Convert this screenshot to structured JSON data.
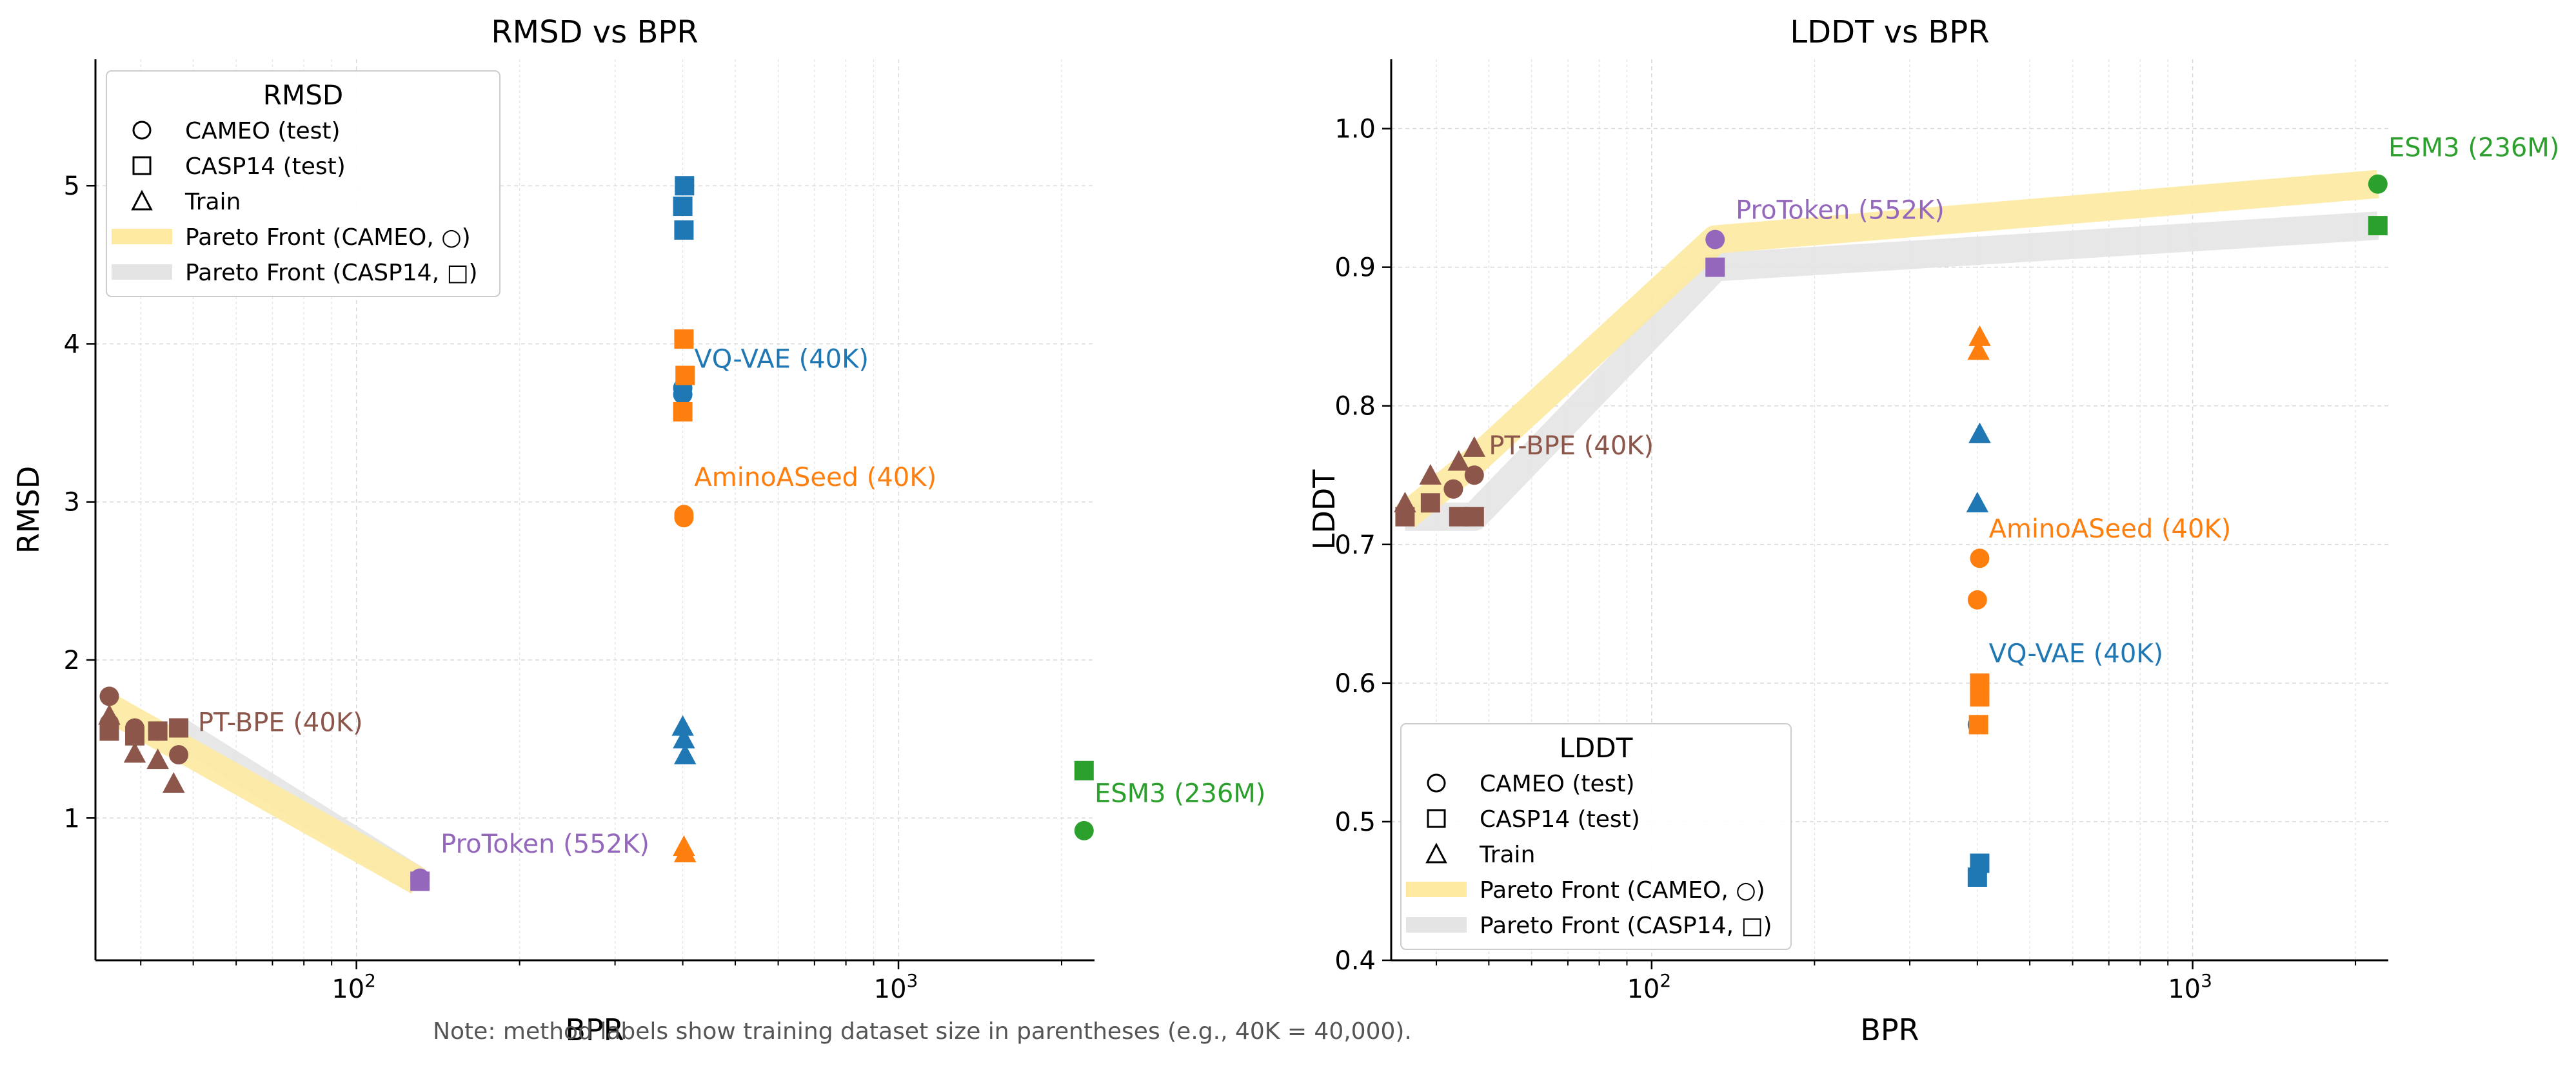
{
  "note": "Note: method labels show training dataset size in parentheses (e.g., 40K = 40,000).",
  "colors": {
    "VQ-VAE": "#1f77b4",
    "AminoASeed": "#ff7f0e",
    "ESM3": "#2ca02c",
    "PT-BPE": "#8c564b",
    "ProToken": "#9467bd",
    "pareto_cameo": "#fdeaa0",
    "pareto_casp14": "#e4e4e4",
    "note": "#555555"
  },
  "chart_data": [
    {
      "type": "scatter",
      "title": "RMSD vs BPR",
      "xlabel": "BPR",
      "ylabel": "RMSD",
      "xscale": "log",
      "xlim": [
        33,
        2300
      ],
      "ylim": [
        0.1,
        5.8
      ],
      "xticks": [
        {
          "value": 100,
          "base": "10",
          "exp": "2"
        },
        {
          "value": 1000,
          "base": "10",
          "exp": "3"
        }
      ],
      "yticks": [
        1,
        2,
        3,
        4,
        5
      ],
      "legend": {
        "title": "RMSD",
        "position": "upper-left",
        "entries": [
          {
            "marker": "circle",
            "label": "CAMEO (test)"
          },
          {
            "marker": "square",
            "label": "CASP14 (test)"
          },
          {
            "marker": "triangle",
            "label": "Train"
          },
          {
            "marker": "band-cameo",
            "label": "Pareto Front (CAMEO, ○)"
          },
          {
            "marker": "band-casp14",
            "label": "Pareto Front (CASP14, □)"
          }
        ]
      },
      "pareto": {
        "cameo": {
          "x": [
            35,
            130
          ],
          "y": [
            1.7,
            0.6
          ]
        },
        "casp14": {
          "x": [
            47,
            130
          ],
          "y": [
            1.55,
            0.6
          ]
        }
      },
      "series": [
        {
          "name": "VQ-VAE",
          "color": "#1f77b4",
          "label": "VQ-VAE (40K)",
          "label_at": [
            420,
            3.85
          ],
          "points": [
            {
              "x": 400,
              "y": 3.68,
              "m": "circle"
            },
            {
              "x": 400,
              "y": 3.72,
              "m": "circle"
            },
            {
              "x": 403,
              "y": 5.0,
              "m": "square"
            },
            {
              "x": 400,
              "y": 4.87,
              "m": "square"
            },
            {
              "x": 402,
              "y": 4.72,
              "m": "square"
            },
            {
              "x": 400,
              "y": 1.58,
              "m": "triangle"
            },
            {
              "x": 402,
              "y": 1.5,
              "m": "triangle"
            },
            {
              "x": 404,
              "y": 1.4,
              "m": "triangle"
            }
          ]
        },
        {
          "name": "AminoASeed",
          "color": "#ff7f0e",
          "label": "AminoASeed (40K)",
          "label_at": [
            420,
            3.1
          ],
          "points": [
            {
              "x": 402,
              "y": 2.92,
              "m": "circle"
            },
            {
              "x": 402,
              "y": 2.9,
              "m": "circle"
            },
            {
              "x": 402,
              "y": 4.03,
              "m": "square"
            },
            {
              "x": 404,
              "y": 3.8,
              "m": "square"
            },
            {
              "x": 400,
              "y": 3.57,
              "m": "square"
            },
            {
              "x": 402,
              "y": 0.82,
              "m": "triangle"
            },
            {
              "x": 404,
              "y": 0.78,
              "m": "triangle"
            }
          ]
        },
        {
          "name": "ESM3",
          "color": "#2ca02c",
          "label": "ESM3 (236M)",
          "label_at": [
            2300,
            1.1
          ],
          "points": [
            {
              "x": 2200,
              "y": 0.92,
              "m": "circle"
            },
            {
              "x": 2200,
              "y": 1.3,
              "m": "square"
            }
          ]
        },
        {
          "name": "PT-BPE",
          "color": "#8c564b",
          "label": "PT-BPE (40K)",
          "label_at": [
            51,
            1.55
          ],
          "points": [
            {
              "x": 35,
              "y": 1.77,
              "m": "circle"
            },
            {
              "x": 35,
              "y": 1.6,
              "m": "circle"
            },
            {
              "x": 39,
              "y": 1.57,
              "m": "circle"
            },
            {
              "x": 43,
              "y": 1.55,
              "m": "circle"
            },
            {
              "x": 47,
              "y": 1.4,
              "m": "circle"
            },
            {
              "x": 35,
              "y": 1.55,
              "m": "square"
            },
            {
              "x": 39,
              "y": 1.52,
              "m": "square"
            },
            {
              "x": 43,
              "y": 1.55,
              "m": "square"
            },
            {
              "x": 47,
              "y": 1.57,
              "m": "square"
            },
            {
              "x": 35,
              "y": 1.65,
              "m": "triangle"
            },
            {
              "x": 39,
              "y": 1.41,
              "m": "triangle"
            },
            {
              "x": 43,
              "y": 1.37,
              "m": "triangle"
            },
            {
              "x": 46,
              "y": 1.22,
              "m": "triangle"
            }
          ]
        },
        {
          "name": "ProToken",
          "color": "#9467bd",
          "label": "ProToken (552K)",
          "label_at": [
            143,
            0.78
          ],
          "points": [
            {
              "x": 131,
              "y": 0.62,
              "m": "circle"
            },
            {
              "x": 131,
              "y": 0.6,
              "m": "square"
            }
          ]
        }
      ]
    },
    {
      "type": "scatter",
      "title": "LDDT vs BPR",
      "xlabel": "BPR",
      "ylabel": "LDDT",
      "xscale": "log",
      "xlim": [
        33,
        2300
      ],
      "ylim": [
        0.4,
        1.05
      ],
      "xticks": [
        {
          "value": 100,
          "base": "10",
          "exp": "2"
        },
        {
          "value": 1000,
          "base": "10",
          "exp": "3"
        }
      ],
      "yticks": [
        0.4,
        0.5,
        0.6,
        0.7,
        0.8,
        0.9,
        1.0
      ],
      "legend": {
        "title": "LDDT",
        "position": "lower-left",
        "entries": [
          {
            "marker": "circle",
            "label": "CAMEO (test)"
          },
          {
            "marker": "square",
            "label": "CASP14 (test)"
          },
          {
            "marker": "triangle",
            "label": "Train"
          },
          {
            "marker": "band-cameo",
            "label": "Pareto Front (CAMEO, ○)"
          },
          {
            "marker": "band-casp14",
            "label": "Pareto Front (CASP14, □)"
          }
        ]
      },
      "pareto": {
        "cameo": {
          "x": [
            35,
            47,
            131,
            2200
          ],
          "y": [
            0.72,
            0.76,
            0.92,
            0.96
          ]
        },
        "casp14": {
          "x": [
            35,
            47,
            131,
            2200
          ],
          "y": [
            0.72,
            0.72,
            0.9,
            0.93
          ]
        }
      },
      "series": [
        {
          "name": "VQ-VAE",
          "color": "#1f77b4",
          "label": "VQ-VAE (40K)",
          "label_at": [
            420,
            0.615
          ],
          "points": [
            {
              "x": 400,
              "y": 0.57,
              "m": "circle"
            },
            {
              "x": 404,
              "y": 0.47,
              "m": "square"
            },
            {
              "x": 400,
              "y": 0.46,
              "m": "square"
            },
            {
              "x": 404,
              "y": 0.78,
              "m": "triangle"
            },
            {
              "x": 400,
              "y": 0.73,
              "m": "triangle"
            }
          ]
        },
        {
          "name": "AminoASeed",
          "color": "#ff7f0e",
          "label": "AminoASeed (40K)",
          "label_at": [
            420,
            0.705
          ],
          "points": [
            {
              "x": 404,
              "y": 0.69,
              "m": "circle"
            },
            {
              "x": 400,
              "y": 0.66,
              "m": "circle"
            },
            {
              "x": 404,
              "y": 0.6,
              "m": "square"
            },
            {
              "x": 404,
              "y": 0.59,
              "m": "square"
            },
            {
              "x": 402,
              "y": 0.57,
              "m": "square"
            },
            {
              "x": 404,
              "y": 0.85,
              "m": "triangle"
            },
            {
              "x": 402,
              "y": 0.84,
              "m": "triangle"
            }
          ]
        },
        {
          "name": "ESM3",
          "color": "#2ca02c",
          "label": "ESM3 (236M)",
          "label_at": [
            2300,
            0.98
          ],
          "points": [
            {
              "x": 2200,
              "y": 0.96,
              "m": "circle"
            },
            {
              "x": 2200,
              "y": 0.93,
              "m": "square"
            }
          ]
        },
        {
          "name": "PT-BPE",
          "color": "#8c564b",
          "label": "PT-BPE (40K)",
          "label_at": [
            50,
            0.765
          ],
          "points": [
            {
              "x": 43,
              "y": 0.74,
              "m": "circle"
            },
            {
              "x": 47,
              "y": 0.75,
              "m": "circle"
            },
            {
              "x": 35,
              "y": 0.72,
              "m": "square"
            },
            {
              "x": 39,
              "y": 0.73,
              "m": "square"
            },
            {
              "x": 44,
              "y": 0.72,
              "m": "square"
            },
            {
              "x": 47,
              "y": 0.72,
              "m": "square"
            },
            {
              "x": 35,
              "y": 0.73,
              "m": "triangle"
            },
            {
              "x": 39,
              "y": 0.75,
              "m": "triangle"
            },
            {
              "x": 44,
              "y": 0.76,
              "m": "triangle"
            },
            {
              "x": 47,
              "y": 0.77,
              "m": "triangle"
            }
          ]
        },
        {
          "name": "ProToken",
          "color": "#9467bd",
          "label": "ProToken (552K)",
          "label_at": [
            143,
            0.935
          ],
          "points": [
            {
              "x": 131,
              "y": 0.92,
              "m": "circle"
            },
            {
              "x": 131,
              "y": 0.9,
              "m": "square"
            }
          ]
        }
      ]
    }
  ]
}
